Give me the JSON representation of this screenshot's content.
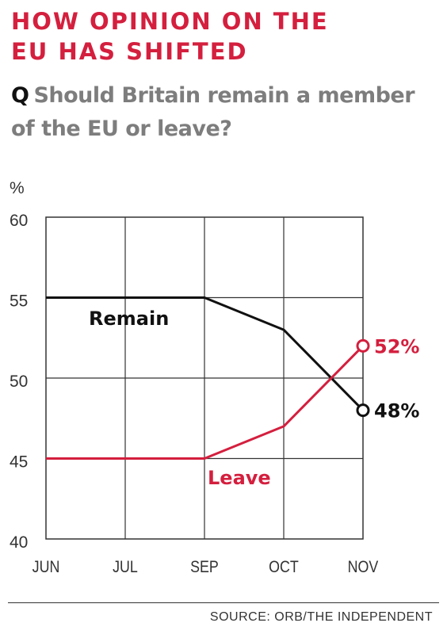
{
  "title_lines": [
    "How opinion on the",
    "EU has shifted"
  ],
  "question": {
    "prefix": "Q",
    "text": "Should Britain remain a member of the EU or leave?"
  },
  "source": "SOURCE: ORB/THE INDEPENDENT",
  "colors": {
    "title": "#d41f3e",
    "remain": "#111111",
    "leave": "#d41f3e",
    "grid": "#333333",
    "question": "#7d7d7d"
  },
  "chart_data": {
    "type": "line",
    "categories": [
      "JUN",
      "JUL",
      "SEP",
      "OCT",
      "NOV"
    ],
    "ylabel": "%",
    "ylim": [
      40,
      60
    ],
    "yticks": [
      40,
      45,
      50,
      55,
      60
    ],
    "grid": true,
    "series": [
      {
        "name": "Remain",
        "values": [
          55,
          55,
          55,
          53,
          48
        ],
        "end_label": "48%",
        "color": "#111111"
      },
      {
        "name": "Leave",
        "values": [
          45,
          45,
          45,
          47,
          52
        ],
        "end_label": "52%",
        "color": "#d41f3e"
      }
    ]
  }
}
